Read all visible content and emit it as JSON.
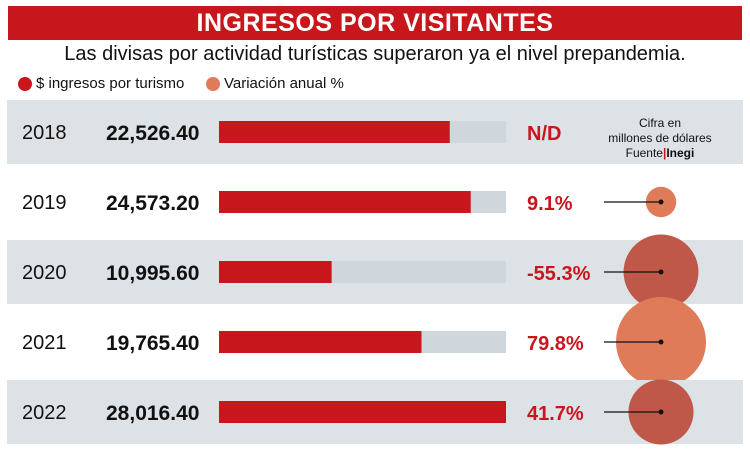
{
  "chart_data": {
    "type": "bar",
    "title": "INGRESOS POR VISITANTES",
    "subtitle": "Las divisas por actividad turísticas superaron ya el nivel prepandemia.",
    "legend": [
      {
        "label": "$ ingresos por turismo",
        "color": "#c8161d"
      },
      {
        "label": "Variación anual %",
        "color": "#e07b5a"
      }
    ],
    "note": {
      "line1": "Cifra en",
      "line2": "millones de dólares",
      "source_label": "Fuente",
      "source_sep": "|",
      "source_name": "Inegi"
    },
    "max_value": 28016.4,
    "rows": [
      {
        "year": "2018",
        "value": 22526.4,
        "value_label": "22,526.40",
        "change": null,
        "change_label": "N/D"
      },
      {
        "year": "2019",
        "value": 24573.2,
        "value_label": "24,573.20",
        "change": 9.1,
        "change_label": "9.1%"
      },
      {
        "year": "2020",
        "value": 10995.6,
        "value_label": "10,995.60",
        "change": -55.3,
        "change_label": "-55.3%"
      },
      {
        "year": "2021",
        "value": 19765.4,
        "value_label": "19,765.40",
        "change": 79.8,
        "change_label": "79.8%"
      },
      {
        "year": "2022",
        "value": 28016.4,
        "value_label": "28,016.40",
        "change": 41.7,
        "change_label": "41.7%"
      }
    ]
  },
  "colors": {
    "accent_red": "#c8161d",
    "bar_track": "#cfd6dc",
    "row_band": "#dde2e6",
    "bubble_positive": "#e07b5a",
    "bubble_negative": "#c0584a",
    "change_text": "#c8161d"
  }
}
